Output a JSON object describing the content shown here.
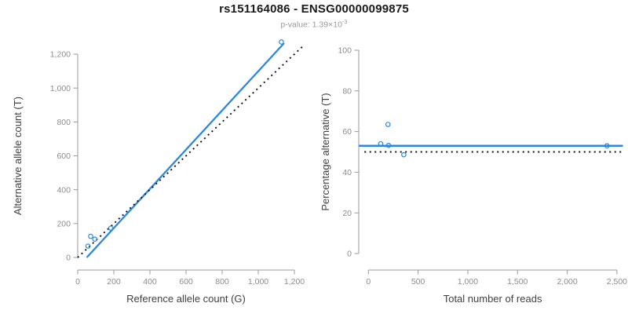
{
  "figure": {
    "title": "rs151164086 - ENSG00000099875",
    "subtitle": {
      "text": "p-value: 1.39×10",
      "exponent": "-3"
    }
  },
  "colors": {
    "accent": "#2b87e0",
    "identity": "#111111",
    "axis": "#9a9a9a",
    "tick_label": "#8c8c8c",
    "axis_title": "#404040",
    "title": "#1a1a1a",
    "subtitle": "#9a9a9a",
    "background": "#ffffff"
  },
  "chart_data": [
    {
      "type": "scatter",
      "panel": "left",
      "xlabel": "Reference allele count (G)",
      "ylabel": "Alternative allele count (T)",
      "xlim": [
        0,
        1200
      ],
      "ylim": [
        0,
        1200
      ],
      "grid": false,
      "legend": "none",
      "xticks": {
        "values": [
          0,
          200,
          400,
          600,
          800,
          1000,
          1200
        ],
        "labels": [
          "0",
          "200",
          "400",
          "600",
          "800",
          "1,000",
          "1,200"
        ]
      },
      "yticks": {
        "values": [
          0,
          200,
          400,
          600,
          800,
          1000,
          1200
        ],
        "labels": [
          "0",
          "200",
          "400",
          "600",
          "800",
          "1,000",
          "1,200"
        ]
      },
      "points": {
        "x": [
          57,
          72,
          95,
          183,
          1128
        ],
        "y": [
          67,
          125,
          108,
          173,
          1272
        ]
      },
      "lines": [
        {
          "name": "fit-line",
          "style": "solid",
          "color": "accent",
          "x": [
            50,
            1143
          ],
          "y": [
            0,
            1265
          ],
          "width": 2.3
        },
        {
          "name": "identity-line",
          "style": "dotted",
          "color": "identity",
          "x": [
            0,
            1255
          ],
          "y": [
            0,
            1255
          ],
          "width": 1.9
        }
      ]
    },
    {
      "type": "scatter",
      "panel": "right",
      "xlabel": "Total number of reads",
      "ylabel": "Percentage alternative (T)",
      "xlim": [
        0,
        2500
      ],
      "ylim": [
        0,
        100
      ],
      "grid": false,
      "legend": "none",
      "xticks": {
        "values": [
          0,
          500,
          1000,
          1500,
          2000,
          2500
        ],
        "labels": [
          "0",
          "500",
          "1,000",
          "1,500",
          "2,000",
          "2,500"
        ]
      },
      "yticks": {
        "values": [
          0,
          20,
          40,
          60,
          80,
          100
        ],
        "labels": [
          "0",
          "20",
          "40",
          "60",
          "80",
          "100"
        ]
      },
      "points": {
        "x": [
          124,
          197,
          203,
          356,
          2400
        ],
        "y": [
          54,
          63.5,
          53.2,
          48.6,
          53
        ]
      },
      "lines": [
        {
          "name": "mean-percentage-line",
          "style": "solid",
          "color": "accent",
          "x": [
            -95,
            2560
          ],
          "y": [
            53,
            53
          ],
          "width": 2.5
        },
        {
          "name": "fifty-percent-line",
          "style": "dotted",
          "color": "identity",
          "x": [
            -40,
            2560
          ],
          "y": [
            50,
            50
          ],
          "width": 1.9
        }
      ]
    }
  ]
}
